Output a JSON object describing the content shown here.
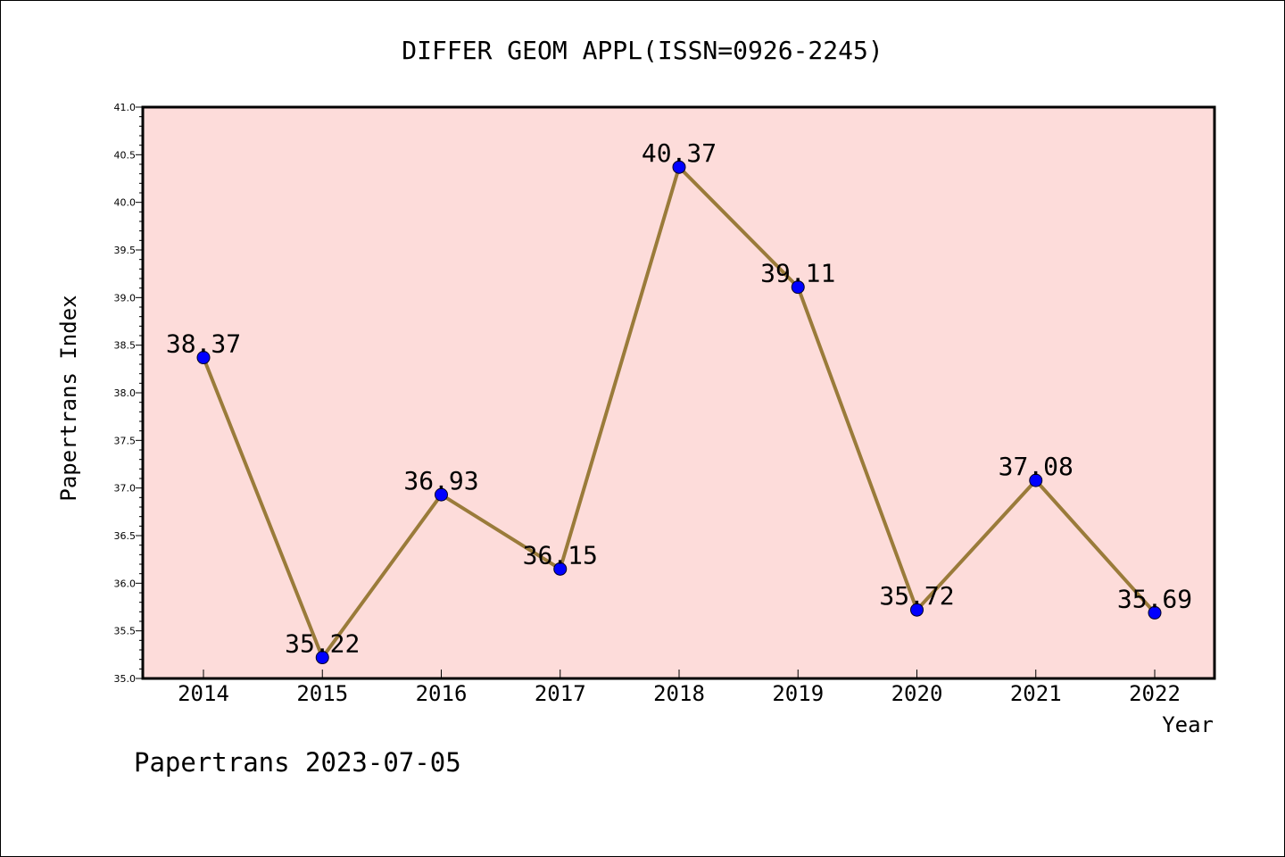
{
  "chart_data": {
    "type": "line",
    "title": "DIFFER GEOM APPL(ISSN=0926-2245)",
    "xlabel": "Year",
    "ylabel": "Papertrans Index",
    "footer": "Papertrans 2023-07-05",
    "categories": [
      "2014",
      "2015",
      "2016",
      "2017",
      "2018",
      "2019",
      "2020",
      "2021",
      "2022"
    ],
    "values": [
      38.37,
      35.22,
      36.93,
      36.15,
      40.37,
      39.11,
      35.72,
      37.08,
      35.69
    ],
    "data_labels": [
      "38.37",
      "35.22",
      "36.93",
      "36.15",
      "40.37",
      "39.11",
      "35.72",
      "37.08",
      "35.69"
    ],
    "ylim": [
      35.0,
      41.0
    ],
    "yticks": [
      "35.0",
      "35.5",
      "36.0",
      "36.5",
      "37.0",
      "37.5",
      "38.0",
      "38.5",
      "39.0",
      "39.5",
      "40.0",
      "40.5",
      "41.0"
    ],
    "grid": false,
    "legend": "none",
    "colors": {
      "plot_background": "#fddcda",
      "line": "#9a7b3a",
      "marker": "#0000ff",
      "axis": "#000000"
    }
  }
}
